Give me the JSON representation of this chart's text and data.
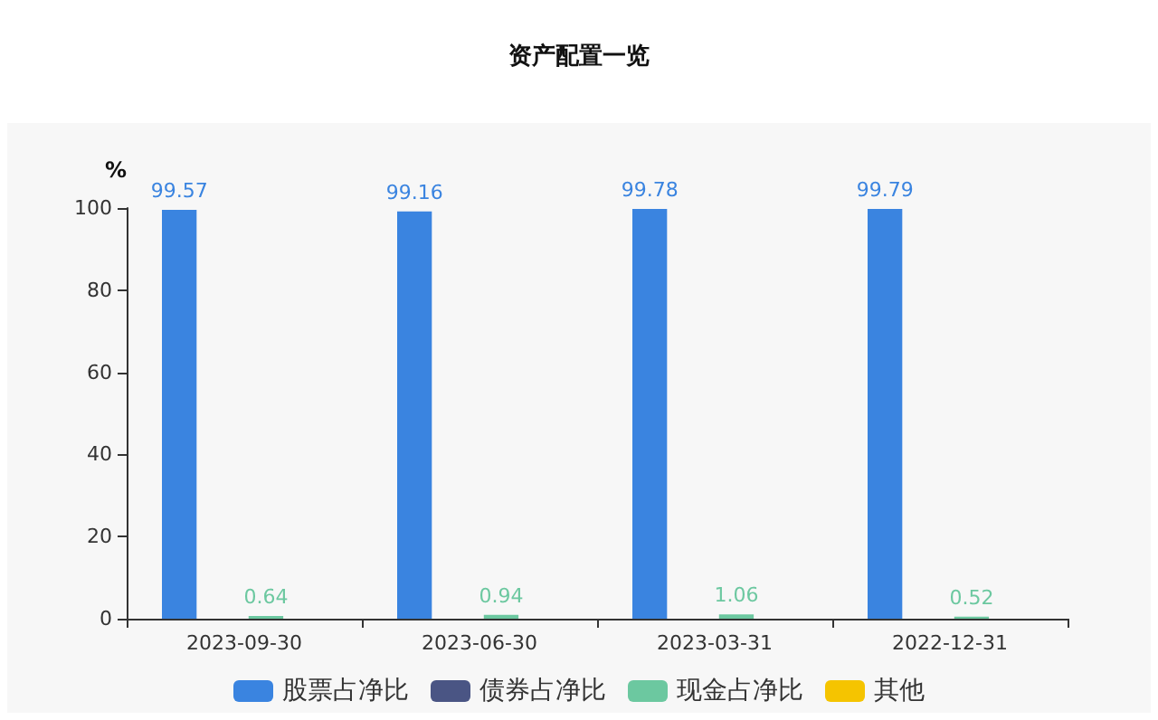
{
  "chart_data": {
    "type": "bar",
    "title": "资产配置一览",
    "ylabel": "%",
    "categories": [
      "2023-09-30",
      "2023-06-30",
      "2023-03-31",
      "2022-12-31"
    ],
    "series": [
      {
        "name": "股票占净比",
        "color": "#3a84e0",
        "values": [
          99.57,
          99.16,
          99.78,
          99.79
        ]
      },
      {
        "name": "债券占净比",
        "color": "#4a5584",
        "values": [
          null,
          null,
          null,
          null
        ]
      },
      {
        "name": "现金占净比",
        "color": "#6cc8a0",
        "values": [
          0.64,
          0.94,
          1.06,
          0.52
        ]
      },
      {
        "name": "其他",
        "color": "#f5c400",
        "values": [
          null,
          null,
          null,
          null
        ]
      }
    ],
    "ylim": [
      0,
      100
    ],
    "yticks": [
      0,
      20,
      40,
      60,
      80,
      100
    ],
    "grid": false,
    "legend": "bottom",
    "data_labels": true
  }
}
